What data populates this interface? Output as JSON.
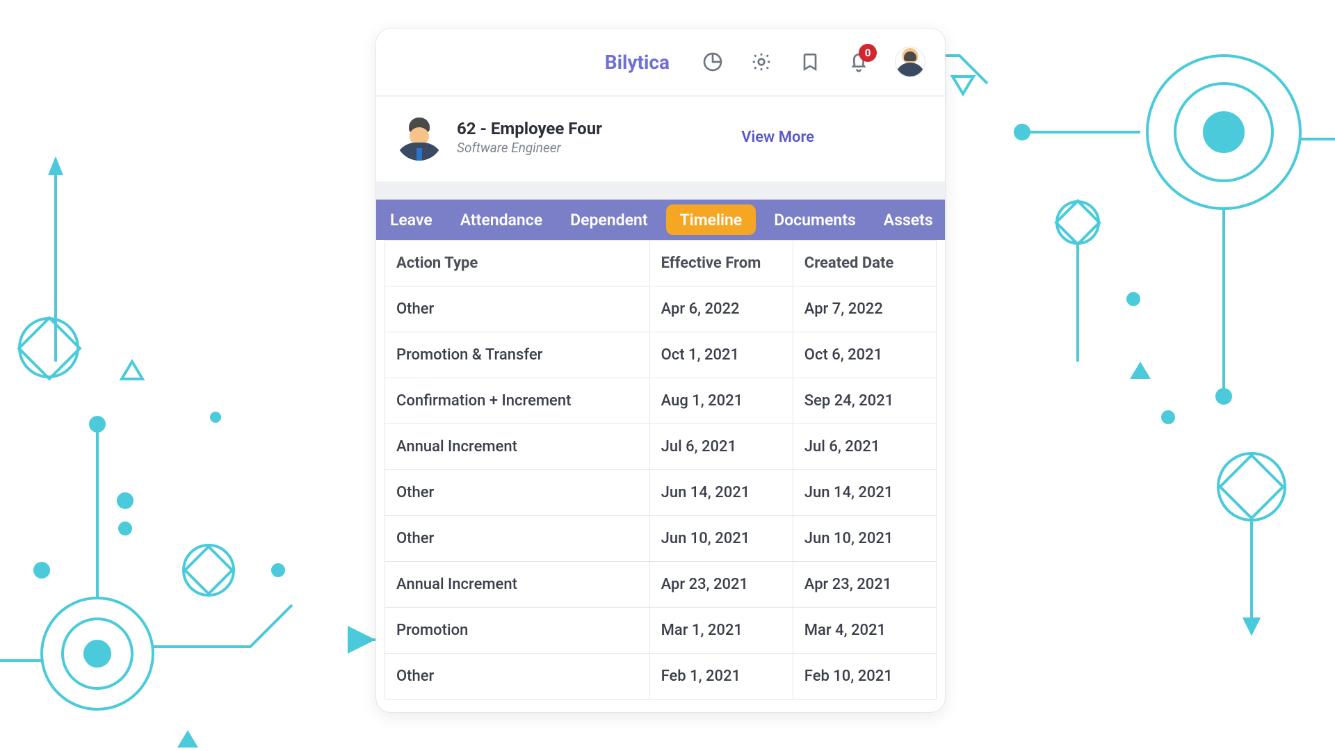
{
  "brand": "Bilytica",
  "header": {
    "notification_count": "0"
  },
  "employee": {
    "title": "62 - Employee Four",
    "role": "Software Engineer",
    "view_more": "View More"
  },
  "tabs": [
    {
      "label": "Leave",
      "active": false
    },
    {
      "label": "Attendance",
      "active": false
    },
    {
      "label": "Dependent",
      "active": false
    },
    {
      "label": "Timeline",
      "active": true
    },
    {
      "label": "Documents",
      "active": false
    },
    {
      "label": "Assets",
      "active": false
    }
  ],
  "table": {
    "columns": [
      "Action Type",
      "Effective From",
      "Created Date"
    ],
    "rows": [
      [
        "Other",
        "Apr 6, 2022",
        "Apr 7, 2022"
      ],
      [
        "Promotion & Transfer",
        "Oct 1, 2021",
        "Oct 6, 2021"
      ],
      [
        "Confirmation + Increment",
        "Aug 1, 2021",
        "Sep 24, 2021"
      ],
      [
        "Annual Increment",
        "Jul 6, 2021",
        "Jul 6, 2021"
      ],
      [
        "Other",
        "Jun 14, 2021",
        "Jun 14, 2021"
      ],
      [
        "Other",
        "Jun 10, 2021",
        "Jun 10, 2021"
      ],
      [
        "Annual Increment",
        "Apr 23, 2021",
        "Apr 23, 2021"
      ],
      [
        "Promotion",
        "Mar 1, 2021",
        "Mar 4, 2021"
      ],
      [
        "Other",
        "Feb 1, 2021",
        "Feb 10, 2021"
      ]
    ]
  },
  "colors": {
    "brand": "#6f6fd8",
    "tab_bar": "#7b7fc7",
    "tab_active": "#f5a623",
    "badge": "#d22730",
    "decor": "#36c5d6"
  }
}
